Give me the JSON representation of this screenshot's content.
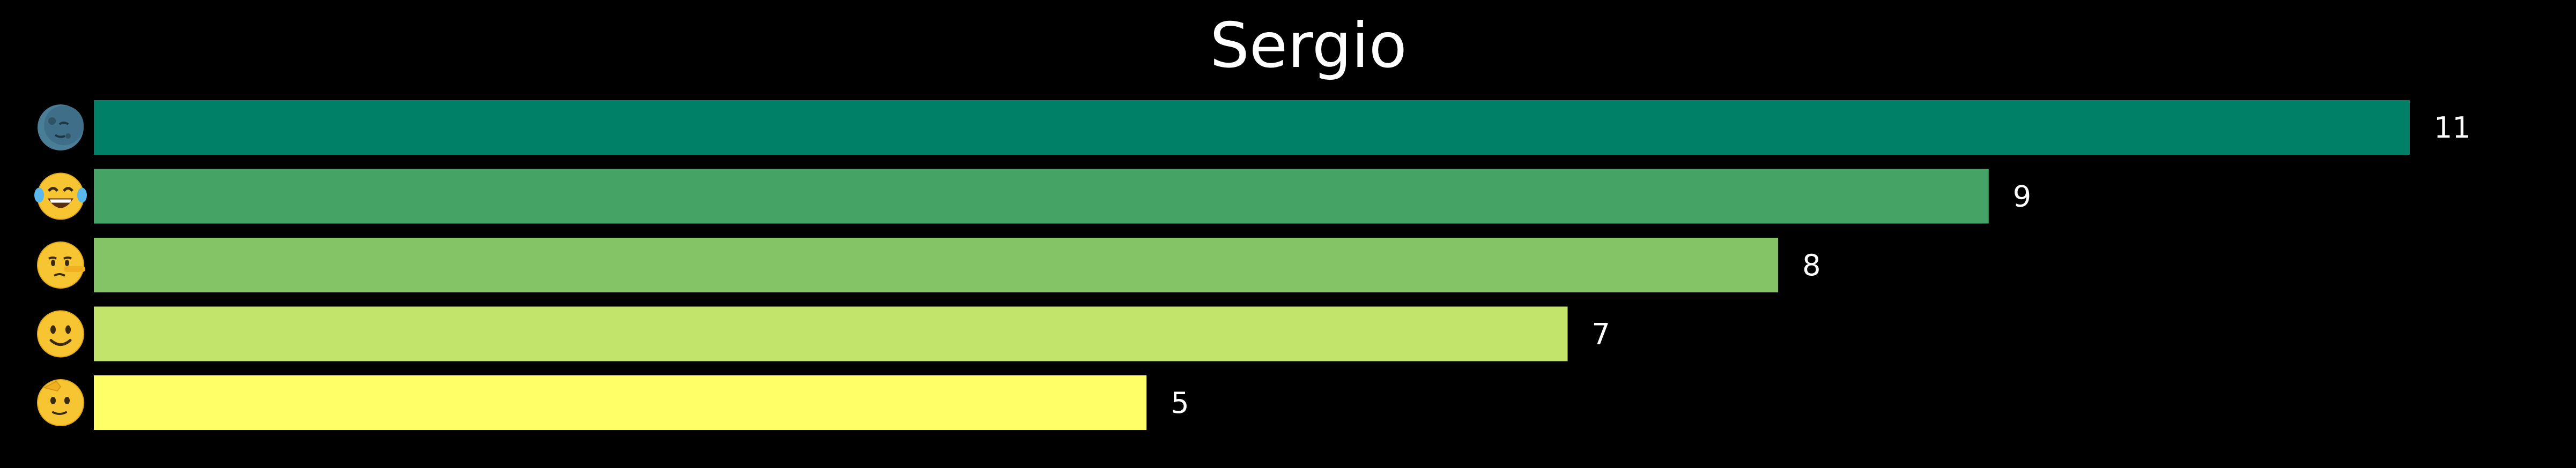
{
  "chart_data": {
    "type": "bar",
    "orientation": "horizontal",
    "title": "Sergio",
    "xlabel": "",
    "ylabel": "",
    "categories": [
      "moon-face",
      "tears-of-joy",
      "lying-face",
      "slightly-smiling-face",
      "saluting-face"
    ],
    "values": [
      11,
      9,
      8,
      7,
      5
    ],
    "value_labels": [
      "11",
      "9",
      "8",
      "7",
      "5"
    ],
    "xlim": [
      0,
      11.55
    ],
    "grid": false,
    "legend": "none",
    "colors": [
      "#008066",
      "#45a366",
      "#84c466",
      "#c2e46a",
      "#ffff66"
    ],
    "background": "#000000",
    "text_color": "#ffffff"
  },
  "icons": [
    "moon-face-icon",
    "face-with-tears-of-joy-icon",
    "lying-face-icon",
    "slightly-smiling-face-icon",
    "saluting-face-icon"
  ]
}
